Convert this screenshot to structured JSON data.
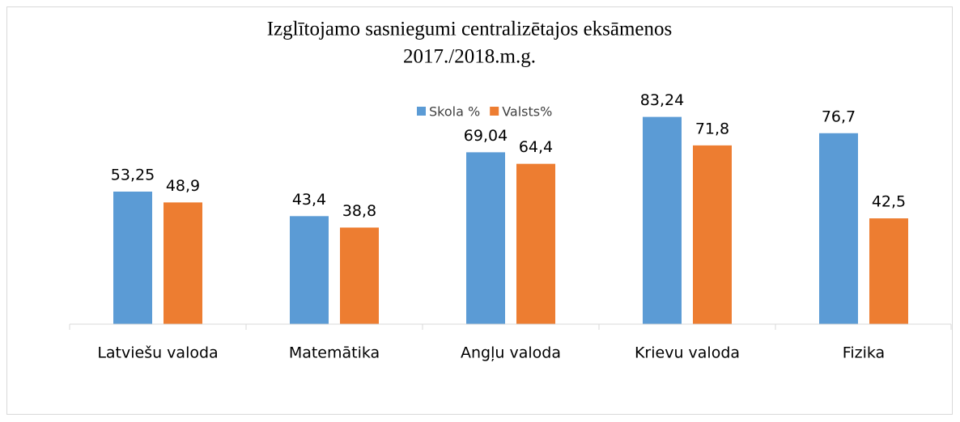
{
  "chart_data": {
    "type": "bar",
    "title": "Izglītojamo sasniegumi centralizētajos eksāmenos",
    "subtitle": "2017./2018.m.g.",
    "categories": [
      "Latviešu valoda",
      "Matemātika",
      "Angļu valoda",
      "Krievu valoda",
      "Fizika"
    ],
    "series": [
      {
        "name": "Skola %",
        "color": "#5b9bd5",
        "values": [
          53.25,
          43.4,
          69.04,
          83.24,
          76.7
        ],
        "value_labels": [
          "53,25",
          "43,4",
          "69,04",
          "83,24",
          "76,7"
        ]
      },
      {
        "name": "Valsts%",
        "color": "#ed7d31",
        "values": [
          48.9,
          38.8,
          64.4,
          71.8,
          42.5
        ],
        "value_labels": [
          "48,9",
          "38,8",
          "64,4",
          "71,8",
          "42,5"
        ]
      }
    ],
    "ylim": [
      0,
      100
    ],
    "legend": "top"
  }
}
